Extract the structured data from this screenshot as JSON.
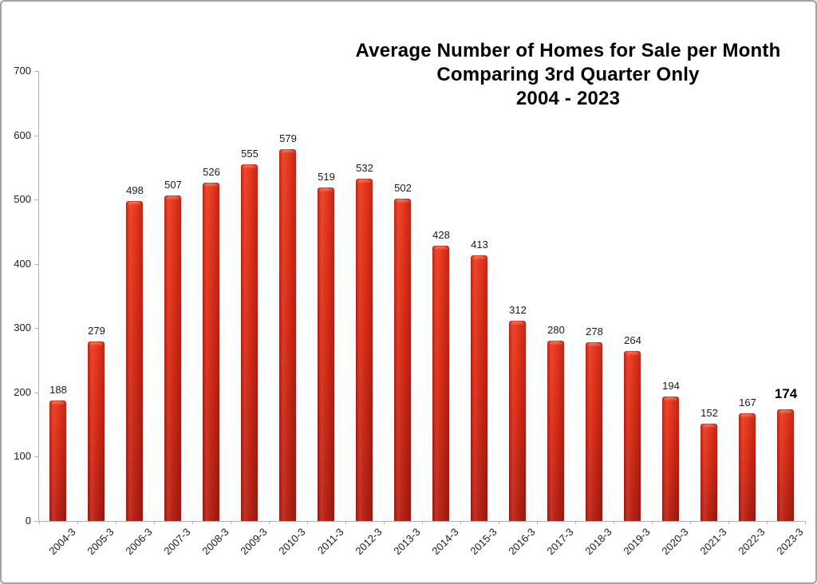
{
  "page": {
    "background": "#ffffff",
    "border_color": "#a3a3a3"
  },
  "chart_data": {
    "type": "bar",
    "title_lines": [
      "Average Number of Homes for Sale per Month",
      "Comparing 3rd Quarter Only",
      "2004 - 2023"
    ],
    "categories": [
      "2004-3",
      "2005-3",
      "2006-3",
      "2007-3",
      "2008-3",
      "2009-3",
      "2010-3",
      "2011-3",
      "2012-3",
      "2013-3",
      "2014-3",
      "2015-3",
      "2016-3",
      "2017-3",
      "2018-3",
      "2019-3",
      "2020-3",
      "2021-3",
      "2022-3",
      "2023-3"
    ],
    "values": [
      188,
      279,
      498,
      507,
      526,
      555,
      579,
      519,
      532,
      502,
      428,
      413,
      312,
      280,
      278,
      264,
      194,
      152,
      167,
      174
    ],
    "highlight_last_value": true,
    "xlabel": "",
    "ylabel": "",
    "ylim": [
      0,
      700
    ],
    "yticks": [
      0,
      100,
      200,
      300,
      400,
      500,
      600,
      700
    ],
    "grid": false,
    "legend_position": "none",
    "bar_color_top": "#ea3a20",
    "bar_color_bottom": "#b22317",
    "axis_color": "#b3b3b3",
    "label_color": "#1a1a1a"
  }
}
